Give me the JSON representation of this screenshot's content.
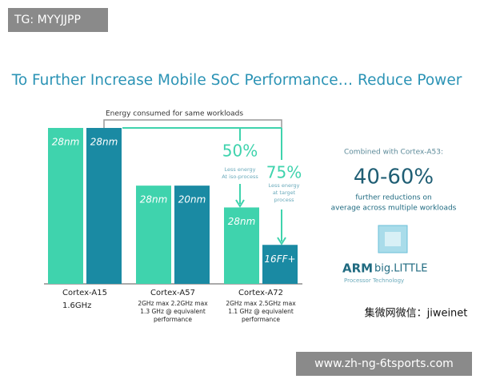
{
  "chart_data": {
    "type": "bar",
    "title": "To Further Increase Mobile SoC Performance… Reduce Power",
    "subtitle": "Energy consumed for same workloads",
    "categories": [
      "Cortex-A15",
      "Cortex-A57",
      "Cortex-A72"
    ],
    "category_notes": [
      [
        "1.6GHz"
      ],
      [
        "2GHz max   2.2GHz max",
        "1.3 GHz @ equivalent",
        "performance"
      ],
      [
        "2GHz max   2.5GHz max",
        "1.1 GHz @ equivalent",
        "performance"
      ]
    ],
    "ylim": [
      0,
      100
    ],
    "series": [
      {
        "color": "#3fd3ad",
        "values": [
          100,
          63,
          49
        ],
        "value_labels": [
          "28nm",
          "28nm",
          "28nm"
        ]
      },
      {
        "color": "#1a8aa3",
        "values": [
          100,
          63,
          25
        ],
        "value_labels": [
          "28nm",
          "20nm",
          "16FF+"
        ]
      }
    ],
    "annotations": [
      {
        "text": "50%",
        "note": [
          "Less energy",
          "At iso-process"
        ]
      },
      {
        "text": "75%",
        "note": [
          "Less energy",
          "at target",
          "process"
        ]
      }
    ],
    "side_panel": {
      "intro": "Combined with Cortex-A53:",
      "headline": "40-60%",
      "body": [
        "further reductions on",
        "average across multiple workloads"
      ],
      "brand": "ARM",
      "brand_product": "big.LITTLE",
      "brand_sub": "Processor Technology"
    },
    "watermarks": [
      "TG: MYYJJPP",
      "www.zh-ng-6tsports.com",
      "集微网微信：jiweinet"
    ]
  }
}
